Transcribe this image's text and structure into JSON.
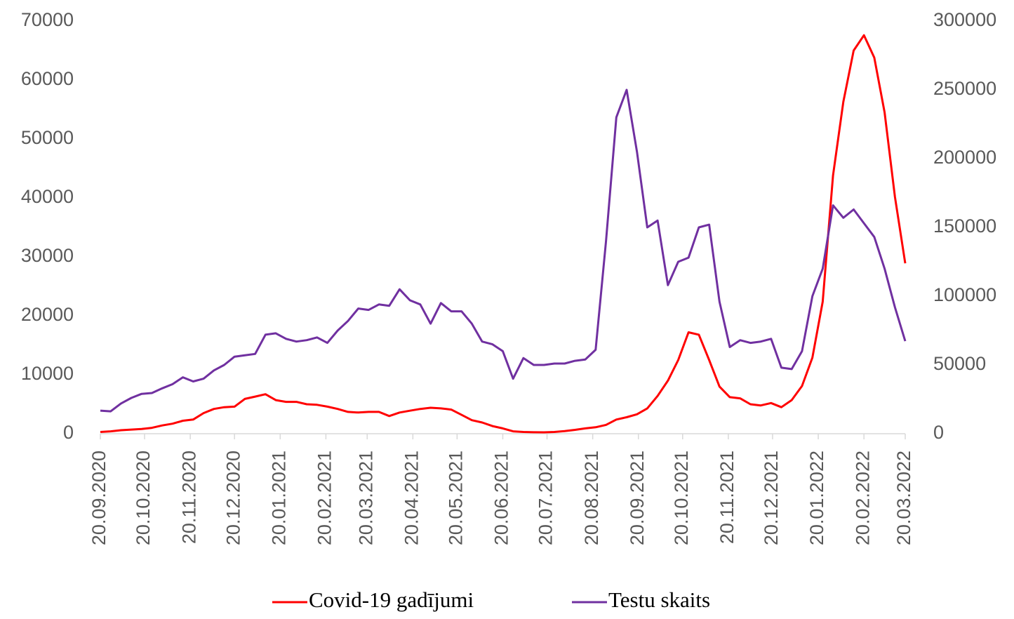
{
  "chart_data": {
    "type": "line",
    "x": [
      "2020-09-20",
      "2020-09-27",
      "2020-10-04",
      "2020-10-11",
      "2020-10-18",
      "2020-10-25",
      "2020-11-01",
      "2020-11-08",
      "2020-11-15",
      "2020-11-22",
      "2020-11-29",
      "2020-12-06",
      "2020-12-13",
      "2020-12-20",
      "2020-12-27",
      "2021-01-03",
      "2021-01-10",
      "2021-01-17",
      "2021-01-24",
      "2021-01-31",
      "2021-02-07",
      "2021-02-14",
      "2021-02-21",
      "2021-02-28",
      "2021-03-07",
      "2021-03-14",
      "2021-03-21",
      "2021-03-28",
      "2021-04-04",
      "2021-04-11",
      "2021-04-18",
      "2021-04-25",
      "2021-05-02",
      "2021-05-09",
      "2021-05-16",
      "2021-05-23",
      "2021-05-30",
      "2021-06-06",
      "2021-06-13",
      "2021-06-20",
      "2021-06-27",
      "2021-07-04",
      "2021-07-11",
      "2021-07-18",
      "2021-07-25",
      "2021-08-01",
      "2021-08-08",
      "2021-08-15",
      "2021-08-22",
      "2021-08-29",
      "2021-09-05",
      "2021-09-12",
      "2021-09-19",
      "2021-09-26",
      "2021-10-03",
      "2021-10-10",
      "2021-10-17",
      "2021-10-24",
      "2021-10-31",
      "2021-11-07",
      "2021-11-14",
      "2021-11-21",
      "2021-11-28",
      "2021-12-05",
      "2021-12-12",
      "2021-12-19",
      "2021-12-26",
      "2022-01-02",
      "2022-01-09",
      "2022-01-16",
      "2022-01-23",
      "2022-01-30",
      "2022-02-06",
      "2022-02-13",
      "2022-02-20",
      "2022-02-27",
      "2022-03-06",
      "2022-03-13",
      "2022-03-20"
    ],
    "series": [
      {
        "name": "Covid-19 gadījumi",
        "color": "#ff0000",
        "axis": "y",
        "values": [
          300,
          400,
          600,
          700,
          800,
          1000,
          1400,
          1700,
          2200,
          2400,
          3500,
          4200,
          4500,
          4600,
          5900,
          6300,
          6700,
          5700,
          5400,
          5400,
          5000,
          4900,
          4600,
          4200,
          3700,
          3600,
          3700,
          3700,
          3000,
          3600,
          3900,
          4200,
          4400,
          4300,
          4100,
          3200,
          2300,
          1900,
          1300,
          900,
          400,
          300,
          250,
          240,
          300,
          450,
          650,
          900,
          1100,
          1500,
          2400,
          2800,
          3300,
          4300,
          6400,
          9000,
          12500,
          17200,
          16800,
          12500,
          8000,
          6200,
          6000,
          5000,
          4800,
          5200,
          4500,
          5700,
          8100,
          12900,
          22400,
          43800,
          56300,
          65000,
          67600,
          63800,
          54500,
          40200,
          28900
        ]
      },
      {
        "name": "Testu skaits",
        "color": "#7030a0",
        "axis": "y2",
        "values": [
          16800,
          16300,
          22000,
          26000,
          29000,
          29600,
          33000,
          36000,
          41000,
          38000,
          40000,
          46000,
          50000,
          56000,
          57000,
          58000,
          72000,
          73000,
          69000,
          67000,
          68000,
          70000,
          66000,
          75000,
          82000,
          91000,
          90000,
          94000,
          93000,
          105000,
          97000,
          94000,
          80000,
          95000,
          89000,
          89000,
          80000,
          67000,
          65000,
          60000,
          40000,
          55000,
          50000,
          50000,
          51000,
          51000,
          53000,
          54000,
          61000,
          140000,
          230000,
          250000,
          205000,
          150000,
          155000,
          108000,
          125000,
          128000,
          150000,
          152000,
          96000,
          63000,
          68000,
          66000,
          67000,
          69000,
          48000,
          47000,
          60000,
          100000,
          120000,
          166000,
          157000,
          163000,
          153000,
          143000,
          120000,
          92000,
          67300
        ]
      }
    ],
    "xlim": [
      "2020-09-20",
      "2022-03-20"
    ],
    "xticks": [
      {
        "value": "2020-09-20",
        "label": "20.09.2020"
      },
      {
        "value": "2020-10-20",
        "label": "20.10.2020"
      },
      {
        "value": "2020-11-20",
        "label": "20.11.2020"
      },
      {
        "value": "2020-12-20",
        "label": "20.12.2020"
      },
      {
        "value": "2021-01-20",
        "label": "20.01.2021"
      },
      {
        "value": "2021-02-20",
        "label": "20.02.2021"
      },
      {
        "value": "2021-03-20",
        "label": "20.03.2021"
      },
      {
        "value": "2021-04-20",
        "label": "20.04.2021"
      },
      {
        "value": "2021-05-20",
        "label": "20.05.2021"
      },
      {
        "value": "2021-06-20",
        "label": "20.06.2021"
      },
      {
        "value": "2021-07-20",
        "label": "20.07.2021"
      },
      {
        "value": "2021-08-20",
        "label": "20.08.2021"
      },
      {
        "value": "2021-09-20",
        "label": "20.09.2021"
      },
      {
        "value": "2021-10-20",
        "label": "20.10.2021"
      },
      {
        "value": "2021-11-20",
        "label": "20.11.2021"
      },
      {
        "value": "2021-12-20",
        "label": "20.12.2021"
      },
      {
        "value": "2022-01-20",
        "label": "20.01.2022"
      },
      {
        "value": "2022-02-20",
        "label": "20.02.2022"
      },
      {
        "value": "2022-03-20",
        "label": "20.03.2022"
      }
    ],
    "ylim": [
      0,
      70000
    ],
    "yticks": [
      0,
      10000,
      20000,
      30000,
      40000,
      50000,
      60000,
      70000
    ],
    "y2lim": [
      0,
      300000
    ],
    "y2ticks": [
      0,
      50000,
      100000,
      150000,
      200000,
      250000,
      300000
    ],
    "grid": false,
    "legend": "bottom"
  }
}
